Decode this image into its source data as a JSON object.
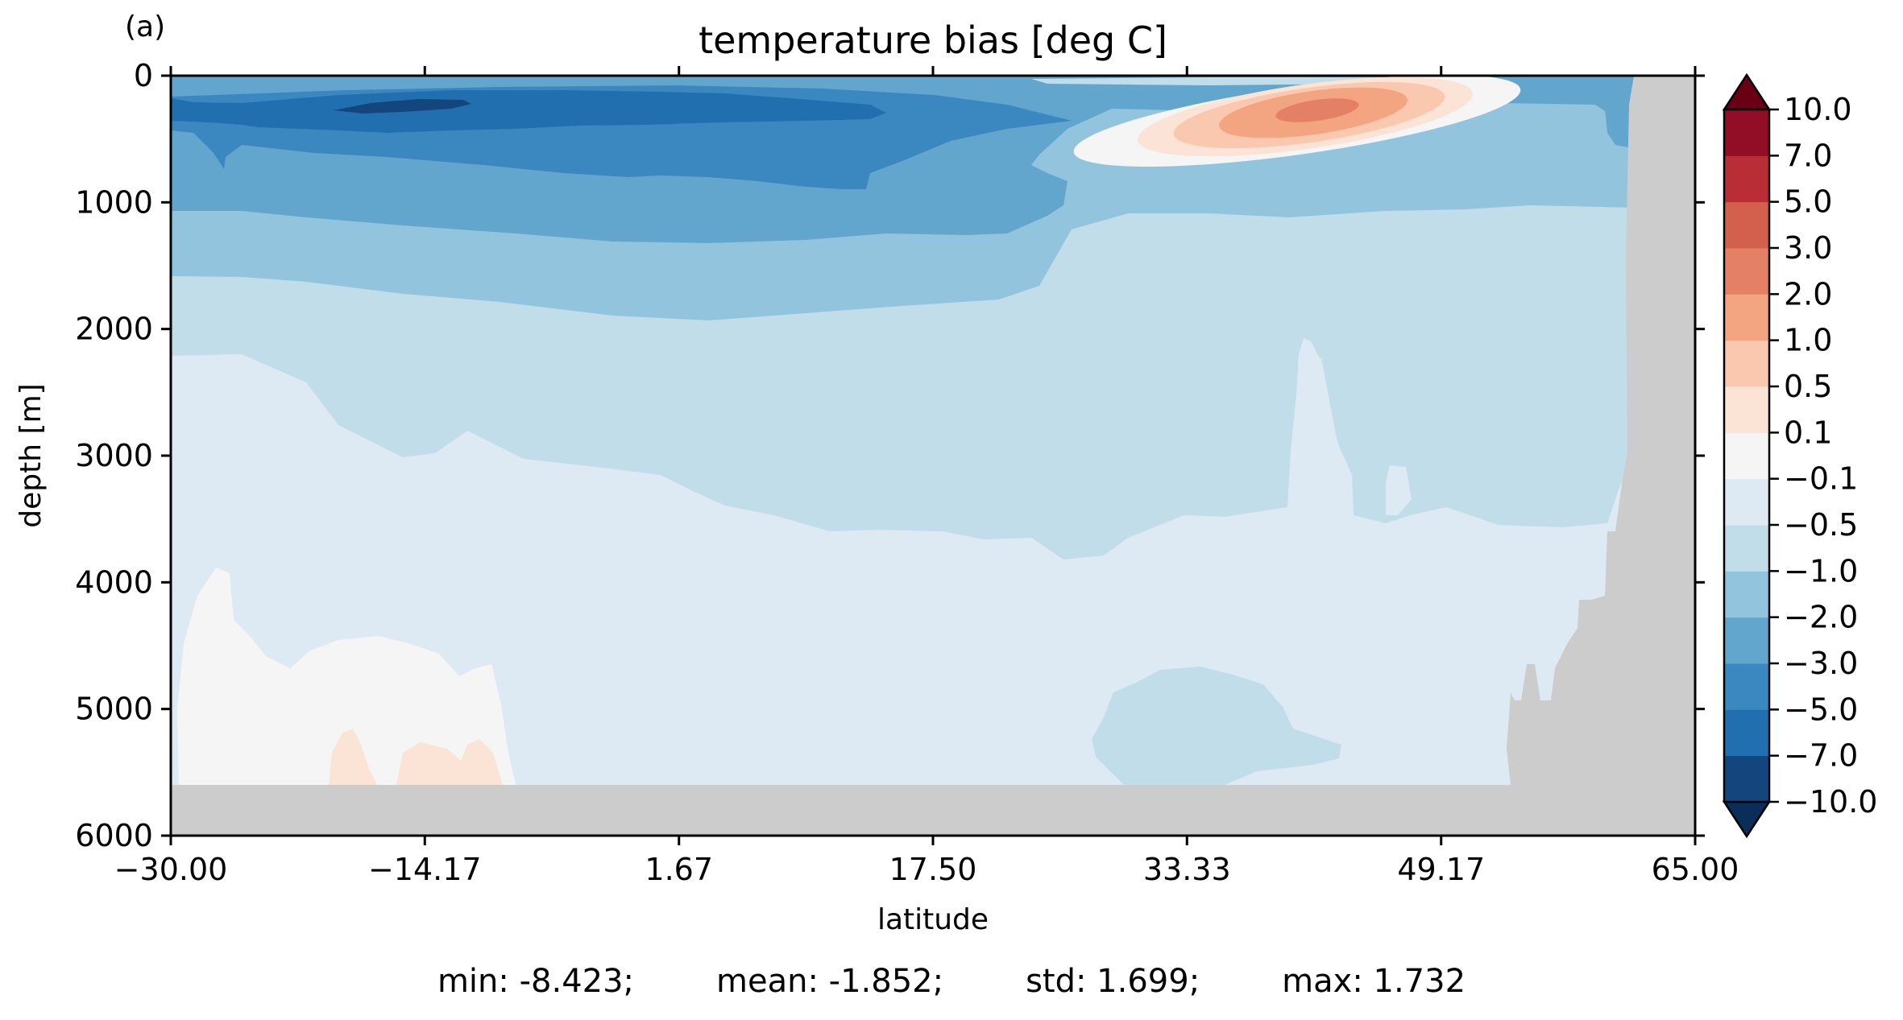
{
  "chart_data": {
    "type": "heatmap",
    "panel_label": "(a)",
    "title": "temperature bias [deg C]",
    "xlabel": "latitude",
    "ylabel": "depth [m]",
    "xlim": [
      -30.0,
      65.0
    ],
    "ylim": [
      6000,
      0
    ],
    "x_ticks": [
      "−30.00",
      "−14.17",
      "1.67",
      "17.50",
      "33.33",
      "49.17",
      "65.00"
    ],
    "x_tick_values": [
      -30.0,
      -14.17,
      1.67,
      17.5,
      33.33,
      49.17,
      65.0
    ],
    "y_ticks": [
      "0",
      "1000",
      "2000",
      "3000",
      "4000",
      "5000",
      "6000"
    ],
    "y_tick_values": [
      0,
      1000,
      2000,
      3000,
      4000,
      5000,
      6000
    ],
    "colorbar": {
      "levels": [
        -10.0,
        -7.0,
        -5.0,
        -3.0,
        -2.0,
        -1.0,
        -0.5,
        -0.1,
        0.1,
        0.5,
        1.0,
        2.0,
        3.0,
        5.0,
        7.0,
        10.0
      ],
      "labels": [
        "−10.0",
        "−7.0",
        "−5.0",
        "−3.0",
        "−2.0",
        "−1.0",
        "−0.5",
        "−0.1",
        "0.1",
        "0.5",
        "1.0",
        "2.0",
        "3.0",
        "5.0",
        "7.0",
        "10.0"
      ],
      "colors": [
        "#14457c",
        "#226fb0",
        "#3b88c0",
        "#62a6ce",
        "#93c4de",
        "#c1ddea",
        "#deeaf3",
        "#f5f5f5",
        "#fbe4d6",
        "#f9c8ae",
        "#f3a481",
        "#e48066",
        "#d3604d",
        "#b92d36",
        "#920d26"
      ],
      "extend_low_color": "#0a2d5a",
      "extend_high_color": "#6a0014",
      "extend": "both"
    },
    "land_color": "#cccccc",
    "stats": {
      "min": "min: -8.423;",
      "mean": "mean: -1.852;",
      "std": "std: 1.699;",
      "max": "max: 1.732"
    }
  }
}
